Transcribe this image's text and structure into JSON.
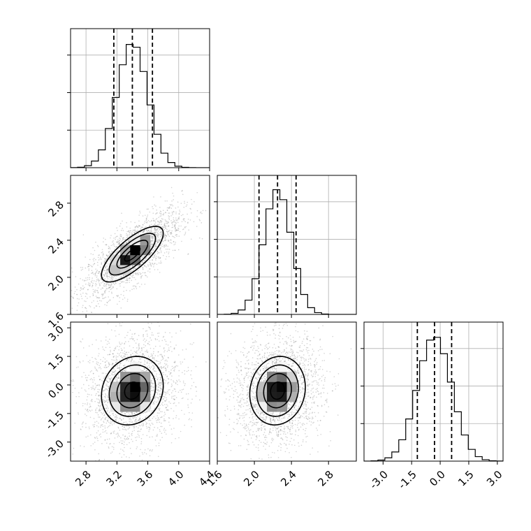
{
  "chart_data": {
    "type": "corner",
    "parameters": [
      {
        "name": "",
        "center": 3.4,
        "sigma": 0.2,
        "range": [
          2.6,
          4.4
        ],
        "quantiles": [
          3.16,
          3.4,
          3.66
        ],
        "ticks": [
          "2.8",
          "3.2",
          "3.6",
          "4.0",
          "4.4"
        ],
        "tick_values": [
          2.8,
          3.2,
          3.6,
          4.0,
          4.4
        ]
      },
      {
        "name": "",
        "center": 2.25,
        "sigma": 0.15,
        "range": [
          1.6,
          3.1
        ],
        "quantiles": [
          2.05,
          2.25,
          2.45
        ],
        "ticks": [
          "1.6",
          "2.0",
          "2.4",
          "2.8"
        ],
        "tick_values": [
          1.6,
          2.0,
          2.4,
          2.8
        ]
      },
      {
        "name": "",
        "center": -0.3,
        "sigma": 0.9,
        "range": [
          -4.0,
          3.3
        ],
        "quantiles": [
          -1.2,
          -0.3,
          0.6
        ],
        "ticks": [
          "-3.0",
          "-1.5",
          "0.0",
          "1.5",
          "3.0"
        ],
        "tick_values": [
          -3.0,
          -1.5,
          0.0,
          1.5,
          3.0
        ]
      }
    ],
    "correlations": [
      {
        "pair": [
          0,
          1
        ],
        "rho": 0.75
      },
      {
        "pair": [
          0,
          2
        ],
        "rho": 0.15
      },
      {
        "pair": [
          1,
          2
        ],
        "rho": 0.1
      }
    ],
    "histogram_bins": 20,
    "contour_levels_sigma": [
      0.5,
      1.0,
      1.5,
      2.0
    ],
    "quantile_line_style": "dashed",
    "grid": true,
    "colors": {
      "line": "#000000",
      "scatter": "#808080",
      "grid": "#b0b0b0"
    }
  }
}
